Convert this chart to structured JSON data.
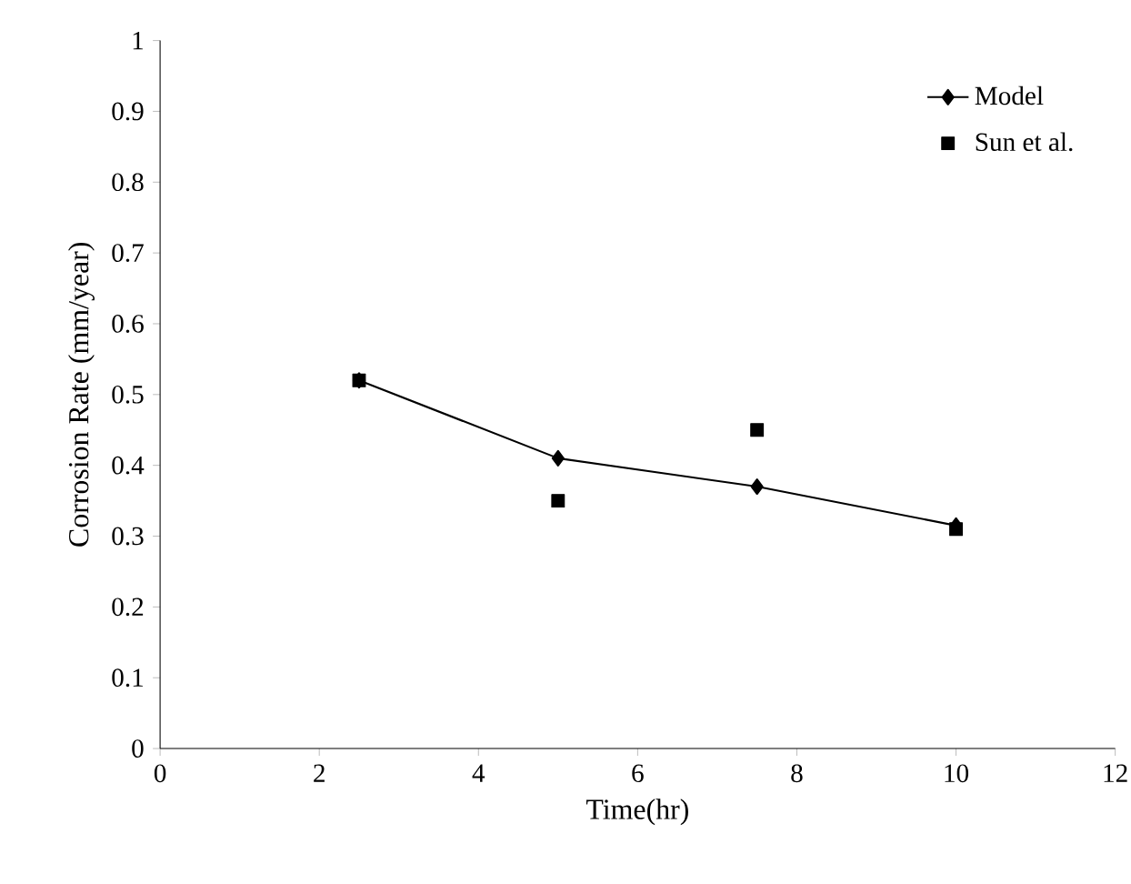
{
  "chart_data": {
    "type": "line",
    "xlabel": "Time(hr)",
    "ylabel": "Corrosion Rate (mm/year)",
    "xlim": [
      0,
      12
    ],
    "xticks": [
      0,
      2,
      4,
      6,
      8,
      10,
      12
    ],
    "ylim": [
      0,
      1
    ],
    "yticks": [
      0,
      0.1,
      0.2,
      0.3,
      0.4,
      0.5,
      0.6,
      0.7,
      0.8,
      0.9,
      1
    ],
    "legend": "top right",
    "x": [
      2.5,
      5,
      7.5,
      10
    ],
    "series": [
      {
        "name": "Model",
        "marker": "diamond",
        "color": "#000000",
        "values": [
          0.52,
          0.41,
          0.37,
          0.315
        ]
      },
      {
        "name": "Sun et al.",
        "type": "scatter",
        "marker": "square",
        "color": "#000000",
        "values": [
          0.52,
          0.35,
          0.45,
          0.31
        ]
      }
    ]
  }
}
